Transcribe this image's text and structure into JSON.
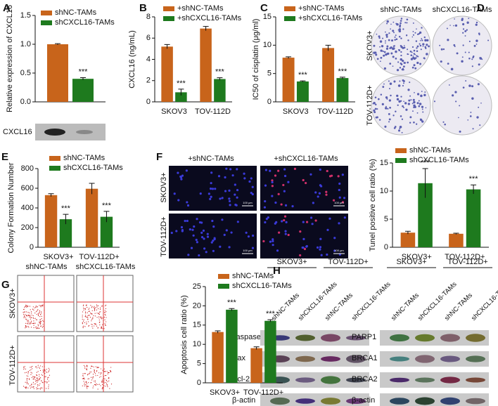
{
  "chart_data": [
    {
      "type": "bar",
      "panel": "A",
      "y_label": "Relative expression of CXCL16",
      "categories": [
        null
      ],
      "series": [
        {
          "name": "shNC-TAMs",
          "color": "#c8641b",
          "values": [
            1.0
          ],
          "errors": [
            0.01
          ]
        },
        {
          "name": "shCXCL16-TAMs",
          "color": "#1e7a1e",
          "values": [
            0.4
          ],
          "errors": [
            0.02
          ]
        }
      ],
      "significance": [
        "***"
      ],
      "ylim": [
        0,
        1.5
      ],
      "yticks": [
        {
          "value": 0,
          "label": "0.0"
        },
        0.5,
        {
          "value": 1,
          "label": "1.0"
        },
        1.5
      ]
    },
    {
      "type": "bar",
      "panel": "B",
      "y_label": "CXCL16 (ng/mL)",
      "categories": [
        "SKOV3",
        "TOV-112D"
      ],
      "series": [
        {
          "name": "+shNC-TAMs",
          "color": "#c8641b",
          "values": [
            5.2,
            6.9
          ],
          "errors": [
            0.2,
            0.2
          ]
        },
        {
          "name": "+shCXCL16-TAMs",
          "color": "#1e7a1e",
          "values": [
            0.9,
            2.15
          ],
          "errors": [
            0.3,
            0.12
          ]
        }
      ],
      "significance": [
        "***",
        "***"
      ],
      "ylim": [
        0,
        8
      ],
      "yticks": [
        0,
        2,
        4,
        6,
        8
      ]
    },
    {
      "type": "bar",
      "panel": "C",
      "y_label": "IC50 of cisplatin (μg/ml)",
      "categories": [
        "SKOV3",
        "TOV-112D"
      ],
      "series": [
        {
          "name": "+shNC-TAMs",
          "color": "#c8641b",
          "values": [
            7.8,
            9.5
          ],
          "errors": [
            0.15,
            0.5
          ]
        },
        {
          "name": "+shCXCL16-TAMs",
          "color": "#1e7a1e",
          "values": [
            3.6,
            4.2
          ],
          "errors": [
            0.1,
            0.15
          ]
        }
      ],
      "significance": [
        "***",
        "***"
      ],
      "ylim": [
        0,
        15
      ],
      "yticks": [
        0,
        5,
        10,
        15
      ]
    },
    {
      "type": "bar",
      "panel": "E",
      "y_label": "Colony Formation Number",
      "categories": [
        "SKOV3+",
        "TOV-112D+"
      ],
      "series": [
        {
          "name": "shNC-TAMs",
          "color": "#c8641b",
          "values": [
            530,
            595
          ],
          "errors": [
            15,
            55
          ]
        },
        {
          "name": "shCXCL16-TAMs",
          "color": "#1e7a1e",
          "values": [
            285,
            310
          ],
          "errors": [
            50,
            55
          ]
        }
      ],
      "significance": [
        "***",
        "***"
      ],
      "ylim": [
        0,
        800
      ],
      "yticks": [
        0,
        200,
        400,
        600,
        800
      ]
    },
    {
      "type": "bar",
      "y_label": "Tunel positive cell ratio (%)",
      "categories": [
        "SKOV3+",
        "TOV-112D+"
      ],
      "series": [
        {
          "name": "shNC-TAMs",
          "color": "#c8641b",
          "values": [
            2.6,
            2.4
          ],
          "errors": [
            0.25,
            0.1
          ]
        },
        {
          "name": "shCXCL16-TAMs",
          "color": "#1e7a1e",
          "values": [
            11.4,
            10.3
          ],
          "errors": [
            2.6,
            0.8
          ]
        }
      ],
      "significance": [
        "***",
        "***"
      ],
      "ylim": [
        0,
        15
      ],
      "yticks": [
        0,
        5,
        10,
        15
      ]
    },
    {
      "type": "bar",
      "y_label": "Apoptosis cell ratio (%)",
      "categories": [
        "SKOV3+",
        "TOV-112D+"
      ],
      "series": [
        {
          "name": "shNC-TAMs",
          "color": "#c8641b",
          "values": [
            13.2,
            9.0
          ],
          "errors": [
            0.3,
            0.35
          ]
        },
        {
          "name": "shCXCL16-TAMs",
          "color": "#1e7a1e",
          "values": [
            19.0,
            16.1
          ],
          "errors": [
            0.3,
            0.3
          ]
        }
      ],
      "significance": [
        "***",
        "***"
      ],
      "ylim": [
        0,
        25
      ],
      "yticks": [
        0,
        5,
        10,
        15,
        20,
        25
      ]
    }
  ],
  "panels": {
    "A": {
      "blot_label": "CXCL16"
    },
    "D": {
      "letter": "D",
      "columns": [
        "shNC-TAMs",
        "shCXCL16-TAMs"
      ],
      "rows": [
        "SKOV3+",
        "TOV-112D+"
      ]
    },
    "F": {
      "letter": "F",
      "columns": [
        "+shNC-TAMs",
        "+shCXCL16-TAMs"
      ],
      "rows": [
        "SKOV3+",
        "TOV-112D+"
      ],
      "scale_bar": "100 μm"
    },
    "G": {
      "letter": "G",
      "columns": [
        "shNC-TAMs",
        "shCXCL16-TAMs"
      ],
      "rows": [
        "SKOV3+",
        "TOV-112D+"
      ]
    },
    "H": {
      "letter": "H",
      "groups": [
        "SKOV3+",
        "TOV-112D+"
      ],
      "lanes": [
        "shNC-TAMs",
        "shCXCL16-TAMs",
        "shNC-TAMs",
        "shCXCL16-TAMs"
      ],
      "left_proteins": [
        "caspase3",
        "Bax",
        "Bcl-2",
        "β-actin"
      ],
      "right_proteins": [
        "PARP1",
        "BRCA1",
        "BRCA2",
        "β-actin"
      ]
    }
  }
}
